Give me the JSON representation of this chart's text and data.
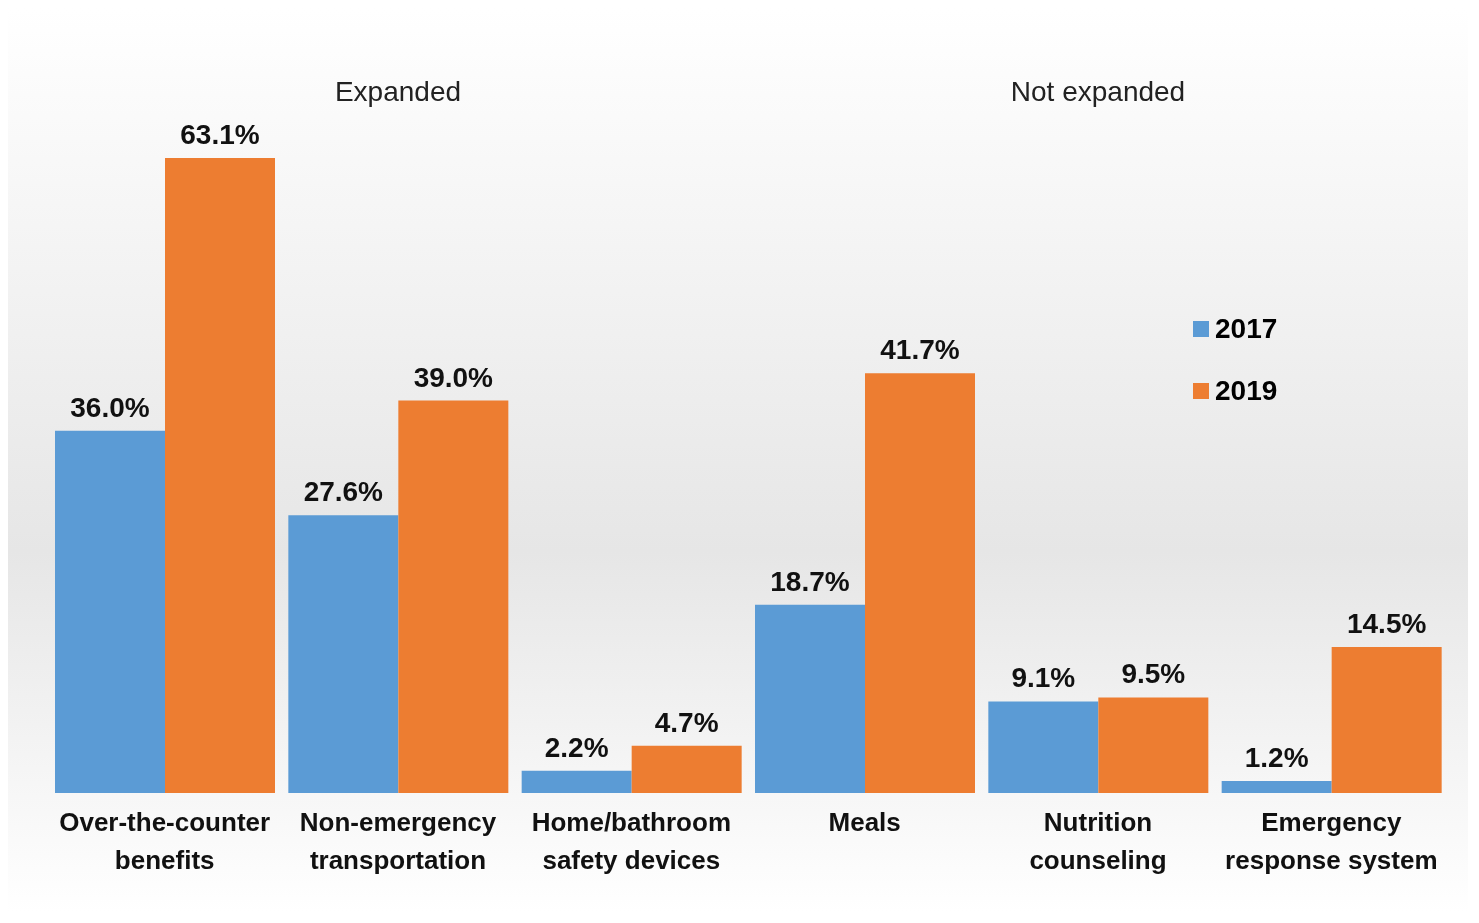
{
  "chart_data": {
    "type": "bar",
    "categories": [
      "Over-the-counter benefits",
      "Non-emergency transportation",
      "Home/bathroom safety devices",
      "Meals",
      "Nutrition counseling",
      "Emergency response system"
    ],
    "series": [
      {
        "name": "2017",
        "color": "#5b9bd5",
        "values": [
          36.0,
          27.6,
          2.2,
          18.7,
          9.1,
          1.2
        ],
        "value_labels": [
          "36.0%",
          "27.6%",
          "2.2%",
          "18.7%",
          "9.1%",
          "1.2%"
        ]
      },
      {
        "name": "2019",
        "color": "#ed7d31",
        "values": [
          63.1,
          39.0,
          4.7,
          41.7,
          9.5,
          14.5
        ],
        "value_labels": [
          "63.1%",
          "39.0%",
          "4.7%",
          "41.7%",
          "9.5%",
          "14.5%"
        ]
      }
    ],
    "annotations": [
      "Expanded",
      "Not expanded"
    ],
    "legend": "right"
  }
}
